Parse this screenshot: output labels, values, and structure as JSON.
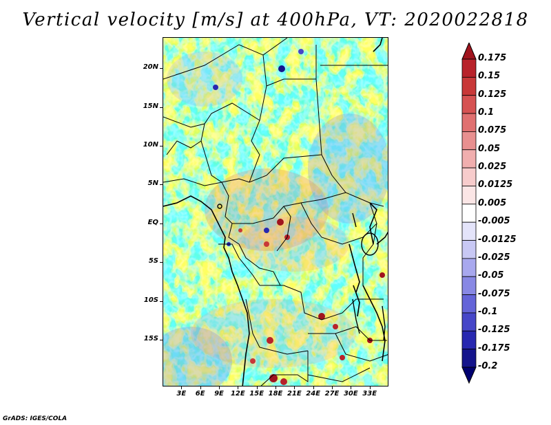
{
  "title": "Vertical velocity [m/s] at 400hPa, VT: 2020022818",
  "credit": "GrADS: IGES/COLA",
  "map": {
    "lon_range": [
      0,
      36
    ],
    "lat_range": [
      -21,
      24
    ],
    "lat_ticks": [
      {
        "value": 20,
        "label": "20N"
      },
      {
        "value": 15,
        "label": "15N"
      },
      {
        "value": 10,
        "label": "10N"
      },
      {
        "value": 5,
        "label": "5N"
      },
      {
        "value": 0,
        "label": "EQ"
      },
      {
        "value": -5,
        "label": "5S"
      },
      {
        "value": -10,
        "label": "10S"
      },
      {
        "value": -15,
        "label": "15S"
      }
    ],
    "lon_ticks": [
      {
        "value": 3,
        "label": "3E"
      },
      {
        "value": 6,
        "label": "6E"
      },
      {
        "value": 9,
        "label": "9E"
      },
      {
        "value": 12,
        "label": "12E"
      },
      {
        "value": 15,
        "label": "15E"
      },
      {
        "value": 18,
        "label": "18E"
      },
      {
        "value": 21,
        "label": "21E"
      },
      {
        "value": 24,
        "label": "24E"
      },
      {
        "value": 27,
        "label": "27E"
      },
      {
        "value": 30,
        "label": "30E"
      },
      {
        "value": 33,
        "label": "33E"
      }
    ]
  },
  "colorbar": {
    "levels": [
      "0.175",
      "0.15",
      "0.125",
      "0.1",
      "0.075",
      "0.05",
      "0.025",
      "0.0125",
      "0.005",
      "-0.005",
      "-0.0125",
      "-0.025",
      "-0.05",
      "-0.075",
      "-0.1",
      "-0.125",
      "-0.175",
      "-0.2"
    ],
    "colors": [
      "#a0141e",
      "#b8222a",
      "#c83838",
      "#d65252",
      "#e07070",
      "#e89090",
      "#f0aeae",
      "#f7cccc",
      "#fbe6e6",
      "#ffffff",
      "#e4e4fa",
      "#c8c8f4",
      "#a8a8ee",
      "#8888e4",
      "#6464d8",
      "#4646c8",
      "#2828b0",
      "#14148c",
      "#000070"
    ]
  }
}
